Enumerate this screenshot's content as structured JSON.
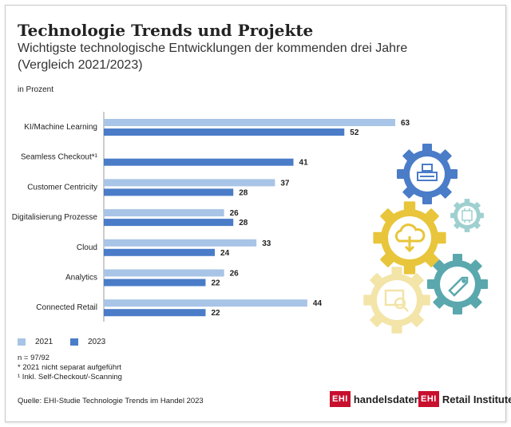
{
  "header": {
    "title": "Technologie Trends und Projekte",
    "subtitle": "Wichtigste technologische Entwicklungen der kommenden drei Jahre (Vergleich 2021/2023)",
    "unit_label": "in Prozent"
  },
  "chart_data": {
    "type": "bar",
    "orientation": "horizontal",
    "title": "Technologie Trends und Projekte",
    "xlabel": "in Prozent",
    "ylabel": "",
    "xlim": [
      0,
      63
    ],
    "categories": [
      "KI/Machine Learning",
      "Seamless Checkout*¹",
      "Customer Centricity",
      "Digitalisierung Prozesse",
      "Cloud",
      "Analytics",
      "Connected Retail"
    ],
    "series": [
      {
        "name": "2021",
        "color": "#a8c4e6",
        "values": [
          63,
          null,
          37,
          26,
          33,
          26,
          44
        ]
      },
      {
        "name": "2023",
        "color": "#4a7cc8",
        "values": [
          52,
          41,
          28,
          28,
          24,
          22,
          22
        ]
      }
    ],
    "legend_position": "bottom-left"
  },
  "legend": {
    "items": [
      {
        "label": "2021",
        "color": "#a8c4e6"
      },
      {
        "label": "2023",
        "color": "#4a7cc8"
      }
    ]
  },
  "notes": {
    "n": "n = 97/92",
    "asterisk": "*  2021 nicht separat aufgeführt",
    "footnote1": "¹  Inkl. Self-Checkout/-Scanning"
  },
  "source": "Quelle: EHI-Studie Technologie Trends im Handel 2023",
  "logos": {
    "left_box": "EHI",
    "left_text": "handelsdaten.de",
    "right_box": "EHI",
    "right_text": "Retail Institute",
    "right_mark": "®"
  },
  "illustration": {
    "gear_icons": [
      "cash-register-icon",
      "chip-icon",
      "cloud-download-icon",
      "price-tag-icon",
      "search-document-icon"
    ],
    "colors": {
      "blue": "#4a7cc8",
      "teal": "#5aa8ad",
      "light_teal": "#9fd0d0",
      "yellow": "#e8c53a",
      "light_yellow": "#f3e4a8"
    }
  }
}
